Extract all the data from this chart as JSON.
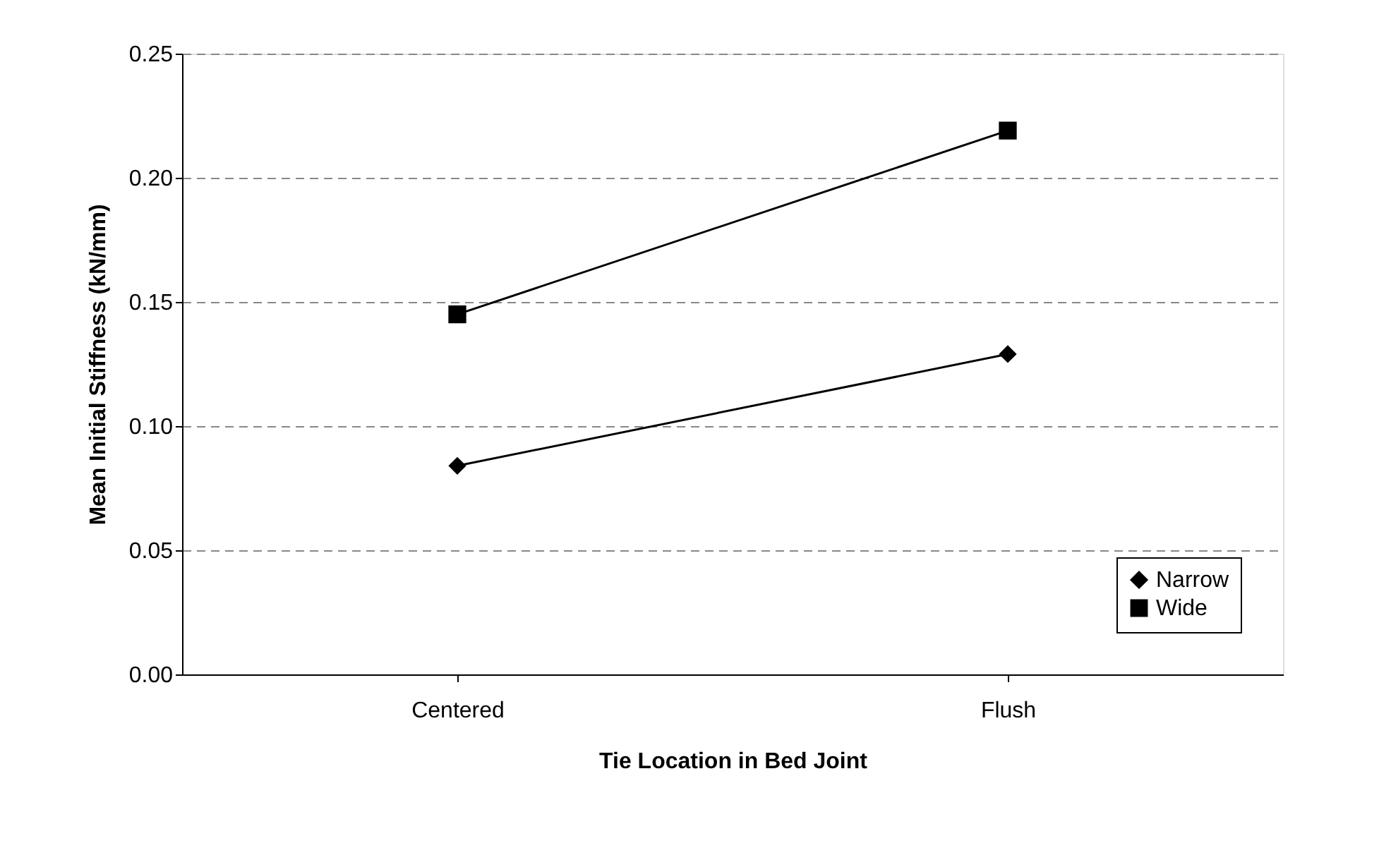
{
  "chart_data": {
    "type": "line",
    "xlabel": "Tie Location in Bed Joint",
    "ylabel": "Mean Initial Stiffness (kN/mm)",
    "categories": [
      "Centered",
      "Flush"
    ],
    "series": [
      {
        "name": "Narrow",
        "color": "#000000",
        "marker": "diamond",
        "values": [
          0.084,
          0.129
        ]
      },
      {
        "name": "Wide",
        "color": "#000000",
        "marker": "square",
        "values": [
          0.145,
          0.219
        ]
      }
    ],
    "ylim": [
      0,
      0.25
    ],
    "yticks": [
      {
        "value": 0,
        "label": "0.00"
      },
      {
        "value": 0.05,
        "label": "0.05"
      },
      {
        "value": 0.1,
        "label": "0.10"
      },
      {
        "value": 0.15,
        "label": "0.15"
      },
      {
        "value": 0.2,
        "label": "0.20"
      },
      {
        "value": 0.25,
        "label": "0.25"
      }
    ],
    "grid": "y",
    "legend": "bottom right",
    "line_style": "solid"
  }
}
